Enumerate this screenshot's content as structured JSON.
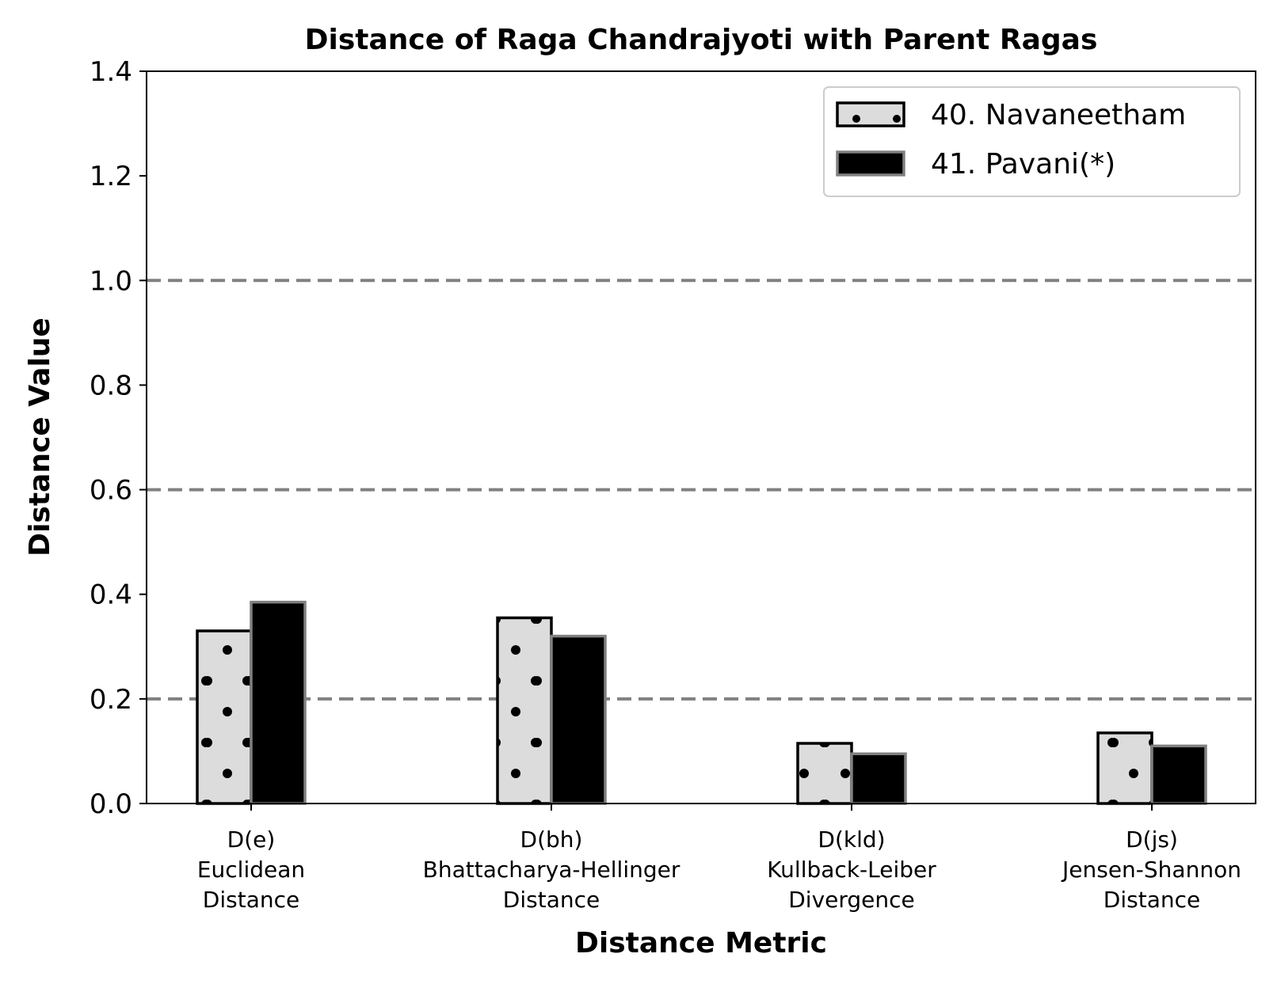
{
  "chart_data": {
    "type": "bar",
    "title": "Distance of Raga Chandrajyoti with Parent Ragas",
    "xlabel": "Distance Metric",
    "ylabel": "Distance Value",
    "categories": [
      [
        "D(e)",
        "Euclidean",
        "Distance"
      ],
      [
        "D(bh)",
        "Bhattacharya-Hellinger",
        "Distance"
      ],
      [
        "D(kld)",
        "Kullback-Leiber",
        "Divergence"
      ],
      [
        "D(js)",
        "Jensen-Shannon",
        "Distance"
      ]
    ],
    "series": [
      {
        "name": "40. Navaneetham",
        "values": [
          0.33,
          0.355,
          0.115,
          0.135
        ],
        "fill": "#dcdcdc",
        "edge": "#000000",
        "hatch": "dots"
      },
      {
        "name": "41. Pavani(*)",
        "values": [
          0.385,
          0.32,
          0.095,
          0.11
        ],
        "fill": "#000000",
        "edge": "#808080",
        "hatch": "none"
      }
    ],
    "ylim": [
      0,
      1.4
    ],
    "yticks": [
      "0.0",
      "0.2",
      "0.4",
      "0.6",
      "0.8",
      "1.0",
      "1.2",
      "1.4"
    ],
    "reference_lines": [
      0.2,
      0.6,
      1.0
    ],
    "reference_line_color": "#808080",
    "legend_position": "top-right",
    "grid": false
  }
}
